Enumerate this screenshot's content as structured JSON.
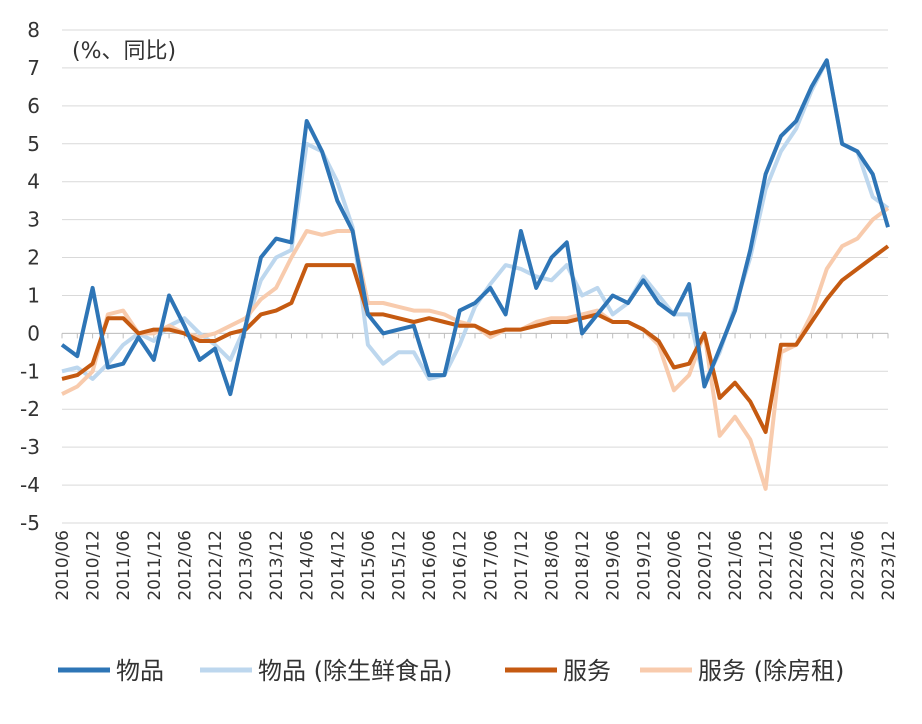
{
  "chart_data": {
    "type": "line",
    "annotation": "(%、同比)",
    "categories": [
      "2010/06",
      null,
      "2010/12",
      null,
      "2011/06",
      null,
      "2011/12",
      null,
      "2012/06",
      null,
      "2012/12",
      null,
      "2013/06",
      null,
      "2013/12",
      null,
      "2014/06",
      null,
      "2014/12",
      null,
      "2015/06",
      null,
      "2015/12",
      null,
      "2016/06",
      null,
      "2016/12",
      null,
      "2017/06",
      null,
      "2017/12",
      null,
      "2018/06",
      null,
      "2018/12",
      null,
      "2019/06",
      null,
      "2019/12",
      null,
      "2020/06",
      null,
      "2020/12",
      null,
      "2021/06",
      null,
      "2021/12",
      null,
      "2022/06",
      null,
      "2022/12",
      null,
      "2023/06",
      null,
      "2023/12"
    ],
    "series": [
      {
        "name": "物品",
        "color": "#2e75b6",
        "values": [
          -0.3,
          -0.6,
          1.2,
          -0.9,
          -0.8,
          -0.1,
          -0.7,
          1.0,
          0.2,
          -0.7,
          -0.4,
          -1.6,
          0.2,
          2.0,
          2.5,
          2.4,
          5.6,
          4.8,
          3.5,
          2.7,
          0.5,
          0.0,
          0.1,
          0.2,
          -1.1,
          -1.1,
          0.6,
          0.8,
          1.2,
          0.5,
          2.7,
          1.2,
          2.0,
          2.4,
          0.0,
          0.5,
          1.0,
          0.8,
          1.4,
          0.8,
          0.5,
          1.3,
          -1.4,
          -0.4,
          0.6,
          2.2,
          4.2,
          5.2,
          5.6,
          6.5,
          7.2,
          5.0,
          4.8,
          4.2,
          2.8
        ]
      },
      {
        "name": "物品 (除生鲜食品)",
        "color": "#bdd7ee",
        "values": [
          -1.0,
          -0.9,
          -1.2,
          -0.8,
          -0.3,
          0.0,
          -0.2,
          0.2,
          0.4,
          0.0,
          -0.3,
          -0.7,
          0.2,
          1.4,
          2.0,
          2.2,
          5.0,
          4.8,
          4.0,
          2.8,
          -0.3,
          -0.8,
          -0.5,
          -0.5,
          -1.2,
          -1.1,
          -0.3,
          0.7,
          1.3,
          1.8,
          1.7,
          1.5,
          1.4,
          1.8,
          1.0,
          1.2,
          0.5,
          0.8,
          1.5,
          1.0,
          0.5,
          0.5,
          -1.3,
          -0.5,
          0.7,
          2.0,
          3.8,
          4.8,
          5.4,
          6.4,
          7.2,
          5.0,
          4.8,
          3.6,
          3.3
        ]
      },
      {
        "name": "服务",
        "color": "#c55a11",
        "values": [
          -1.2,
          -1.1,
          -0.8,
          0.4,
          0.4,
          0.0,
          0.1,
          0.1,
          0.0,
          -0.2,
          -0.2,
          0.0,
          0.1,
          0.5,
          0.6,
          0.8,
          1.8,
          1.8,
          1.8,
          1.8,
          0.5,
          0.5,
          0.4,
          0.3,
          0.4,
          0.3,
          0.2,
          0.2,
          0.0,
          0.1,
          0.1,
          0.2,
          0.3,
          0.3,
          0.4,
          0.5,
          0.3,
          0.3,
          0.1,
          -0.2,
          -0.9,
          -0.8,
          0.0,
          -1.7,
          -1.3,
          -1.8,
          -2.6,
          -0.3,
          -0.3,
          0.3,
          0.9,
          1.4,
          1.7,
          2.0,
          2.3
        ]
      },
      {
        "name": "服务 (除房租)",
        "color": "#f8cbad",
        "values": [
          -1.6,
          -1.4,
          -1.0,
          0.5,
          0.6,
          0.0,
          0.0,
          0.2,
          0.0,
          -0.1,
          0.0,
          0.2,
          0.4,
          0.9,
          1.2,
          2.0,
          2.7,
          2.6,
          2.7,
          2.7,
          0.8,
          0.8,
          0.7,
          0.6,
          0.6,
          0.5,
          0.3,
          0.2,
          -0.1,
          0.1,
          0.1,
          0.3,
          0.4,
          0.4,
          0.5,
          0.6,
          0.3,
          0.3,
          0.1,
          -0.3,
          -1.5,
          -1.1,
          0.0,
          -2.7,
          -2.2,
          -2.8,
          -4.1,
          -0.5,
          -0.3,
          0.5,
          1.7,
          2.3,
          2.5,
          3.0,
          3.3
        ]
      }
    ],
    "ylim": [
      -5,
      8
    ],
    "yticks": [
      -5,
      -4,
      -3,
      -2,
      -1,
      0,
      1,
      2,
      3,
      4,
      5,
      6,
      7,
      8
    ],
    "grid": true
  }
}
